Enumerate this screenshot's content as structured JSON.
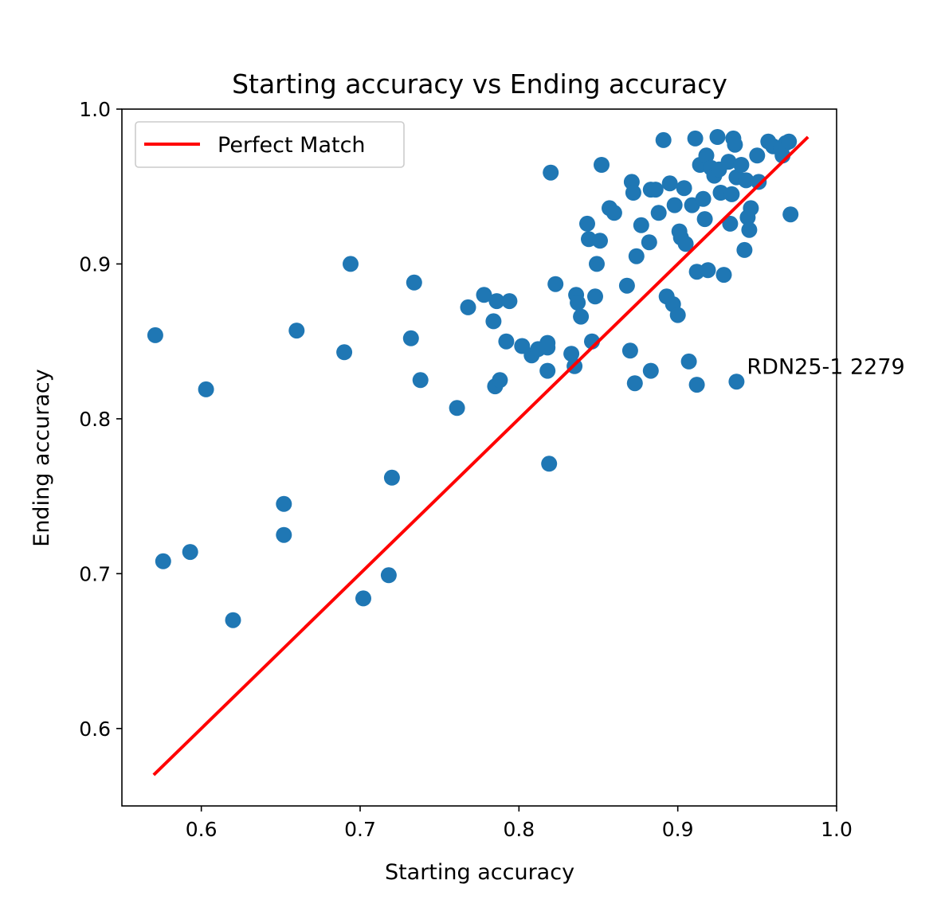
{
  "chart_data": {
    "type": "scatter",
    "title": "Starting accuracy vs Ending accuracy",
    "xlabel": "Starting accuracy",
    "ylabel": "Ending accuracy",
    "xlim": [
      0.55,
      1.0
    ],
    "ylim": [
      0.55,
      1.0
    ],
    "xticks": [
      0.6,
      0.7,
      0.8,
      0.9,
      1.0
    ],
    "xtick_labels": [
      "0.6",
      "0.7",
      "0.8",
      "0.9",
      "1.0"
    ],
    "yticks": [
      0.6,
      0.7,
      0.8,
      0.9,
      1.0
    ],
    "ytick_labels": [
      "0.6",
      "0.7",
      "0.8",
      "0.9",
      "1.0"
    ],
    "grid": false,
    "legend": {
      "placement": "top-left",
      "entries": [
        "Perfect Match"
      ]
    },
    "line": {
      "name": "Perfect Match",
      "x": [
        0.57,
        0.982
      ],
      "y": [
        0.57,
        0.982
      ],
      "color": "#ff0000"
    },
    "marker_color": "#1f77b4",
    "annotation": {
      "text": "RDN25-1 2279",
      "x": 0.9435,
      "y": 0.829
    },
    "points": [
      {
        "x": 0.571,
        "y": 0.854
      },
      {
        "x": 0.576,
        "y": 0.708
      },
      {
        "x": 0.593,
        "y": 0.714
      },
      {
        "x": 0.603,
        "y": 0.819
      },
      {
        "x": 0.62,
        "y": 0.67
      },
      {
        "x": 0.652,
        "y": 0.745
      },
      {
        "x": 0.652,
        "y": 0.725
      },
      {
        "x": 0.66,
        "y": 0.857
      },
      {
        "x": 0.69,
        "y": 0.843
      },
      {
        "x": 0.694,
        "y": 0.9
      },
      {
        "x": 0.702,
        "y": 0.684
      },
      {
        "x": 0.718,
        "y": 0.699
      },
      {
        "x": 0.72,
        "y": 0.762
      },
      {
        "x": 0.732,
        "y": 0.852
      },
      {
        "x": 0.734,
        "y": 0.888
      },
      {
        "x": 0.738,
        "y": 0.825
      },
      {
        "x": 0.761,
        "y": 0.807
      },
      {
        "x": 0.768,
        "y": 0.872
      },
      {
        "x": 0.778,
        "y": 0.88
      },
      {
        "x": 0.784,
        "y": 0.863
      },
      {
        "x": 0.786,
        "y": 0.876
      },
      {
        "x": 0.785,
        "y": 0.821
      },
      {
        "x": 0.788,
        "y": 0.825
      },
      {
        "x": 0.792,
        "y": 0.85
      },
      {
        "x": 0.794,
        "y": 0.876
      },
      {
        "x": 0.802,
        "y": 0.847
      },
      {
        "x": 0.808,
        "y": 0.841
      },
      {
        "x": 0.812,
        "y": 0.845
      },
      {
        "x": 0.818,
        "y": 0.846
      },
      {
        "x": 0.818,
        "y": 0.849
      },
      {
        "x": 0.818,
        "y": 0.831
      },
      {
        "x": 0.819,
        "y": 0.771
      },
      {
        "x": 0.82,
        "y": 0.959
      },
      {
        "x": 0.823,
        "y": 0.887
      },
      {
        "x": 0.833,
        "y": 0.842
      },
      {
        "x": 0.835,
        "y": 0.834
      },
      {
        "x": 0.836,
        "y": 0.88
      },
      {
        "x": 0.837,
        "y": 0.875
      },
      {
        "x": 0.839,
        "y": 0.866
      },
      {
        "x": 0.843,
        "y": 0.926
      },
      {
        "x": 0.844,
        "y": 0.916
      },
      {
        "x": 0.846,
        "y": 0.85
      },
      {
        "x": 0.848,
        "y": 0.879
      },
      {
        "x": 0.849,
        "y": 0.9
      },
      {
        "x": 0.851,
        "y": 0.915
      },
      {
        "x": 0.852,
        "y": 0.964
      },
      {
        "x": 0.857,
        "y": 0.936
      },
      {
        "x": 0.86,
        "y": 0.933
      },
      {
        "x": 0.868,
        "y": 0.886
      },
      {
        "x": 0.87,
        "y": 0.844
      },
      {
        "x": 0.871,
        "y": 0.953
      },
      {
        "x": 0.872,
        "y": 0.946
      },
      {
        "x": 0.873,
        "y": 0.823
      },
      {
        "x": 0.874,
        "y": 0.905
      },
      {
        "x": 0.877,
        "y": 0.925
      },
      {
        "x": 0.882,
        "y": 0.914
      },
      {
        "x": 0.883,
        "y": 0.948
      },
      {
        "x": 0.883,
        "y": 0.831
      },
      {
        "x": 0.886,
        "y": 0.948
      },
      {
        "x": 0.888,
        "y": 0.933
      },
      {
        "x": 0.891,
        "y": 0.98
      },
      {
        "x": 0.893,
        "y": 0.879
      },
      {
        "x": 0.895,
        "y": 0.952
      },
      {
        "x": 0.897,
        "y": 0.874
      },
      {
        "x": 0.898,
        "y": 0.938
      },
      {
        "x": 0.9,
        "y": 0.867
      },
      {
        "x": 0.901,
        "y": 0.921
      },
      {
        "x": 0.902,
        "y": 0.917
      },
      {
        "x": 0.904,
        "y": 0.949
      },
      {
        "x": 0.905,
        "y": 0.913
      },
      {
        "x": 0.907,
        "y": 0.837
      },
      {
        "x": 0.909,
        "y": 0.938
      },
      {
        "x": 0.911,
        "y": 0.981
      },
      {
        "x": 0.912,
        "y": 0.895
      },
      {
        "x": 0.912,
        "y": 0.822
      },
      {
        "x": 0.914,
        "y": 0.964
      },
      {
        "x": 0.916,
        "y": 0.942
      },
      {
        "x": 0.917,
        "y": 0.929
      },
      {
        "x": 0.918,
        "y": 0.97
      },
      {
        "x": 0.919,
        "y": 0.896
      },
      {
        "x": 0.921,
        "y": 0.962
      },
      {
        "x": 0.923,
        "y": 0.957
      },
      {
        "x": 0.925,
        "y": 0.982
      },
      {
        "x": 0.926,
        "y": 0.961
      },
      {
        "x": 0.927,
        "y": 0.946
      },
      {
        "x": 0.929,
        "y": 0.893
      },
      {
        "x": 0.932,
        "y": 0.966
      },
      {
        "x": 0.933,
        "y": 0.926
      },
      {
        "x": 0.934,
        "y": 0.945
      },
      {
        "x": 0.935,
        "y": 0.981
      },
      {
        "x": 0.936,
        "y": 0.977
      },
      {
        "x": 0.937,
        "y": 0.956
      },
      {
        "x": 0.937,
        "y": 0.824
      },
      {
        "x": 0.94,
        "y": 0.964
      },
      {
        "x": 0.942,
        "y": 0.909
      },
      {
        "x": 0.943,
        "y": 0.954
      },
      {
        "x": 0.944,
        "y": 0.93
      },
      {
        "x": 0.945,
        "y": 0.922
      },
      {
        "x": 0.946,
        "y": 0.936
      },
      {
        "x": 0.95,
        "y": 0.97
      },
      {
        "x": 0.951,
        "y": 0.953
      },
      {
        "x": 0.957,
        "y": 0.979
      },
      {
        "x": 0.96,
        "y": 0.976
      },
      {
        "x": 0.965,
        "y": 0.974
      },
      {
        "x": 0.966,
        "y": 0.97
      },
      {
        "x": 0.968,
        "y": 0.978
      },
      {
        "x": 0.97,
        "y": 0.979
      },
      {
        "x": 0.971,
        "y": 0.932
      }
    ]
  }
}
